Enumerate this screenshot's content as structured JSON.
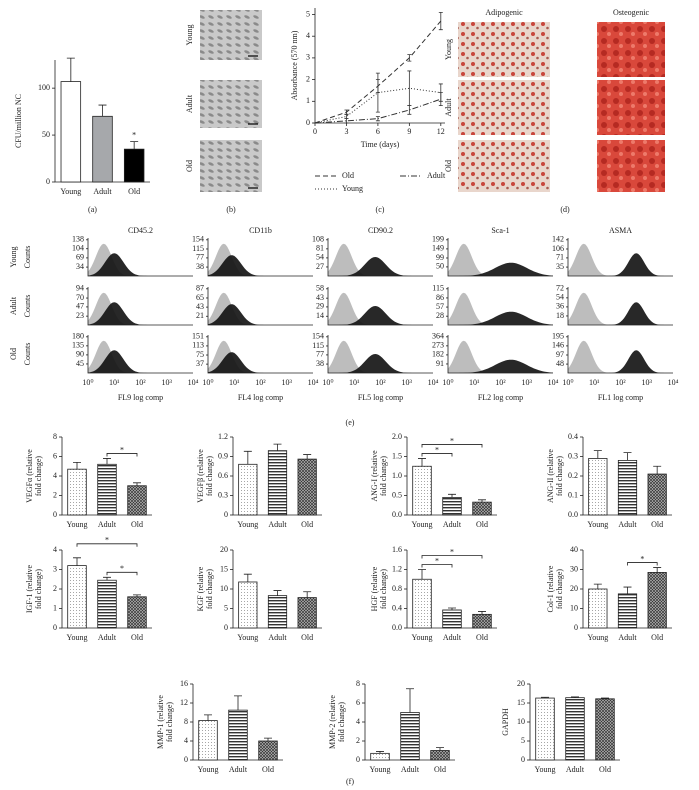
{
  "chart_data": [
    {
      "type": "bar",
      "label": "(a)",
      "ylabel": "CFU/million NC",
      "categories": [
        "Young",
        "Adult",
        "Old"
      ],
      "values": [
        107,
        70,
        35
      ],
      "errors": [
        25,
        12,
        8
      ],
      "colors": [
        "#ffffff",
        "#a6a8ab",
        "#000000"
      ],
      "ylim": [
        0,
        130
      ],
      "yticks": [
        0,
        50,
        100
      ],
      "significance": [
        {
          "over": "Old",
          "label": "*"
        }
      ]
    },
    {
      "type": "line",
      "label": "(c)",
      "ylabel": "Absorbance (570 nm)",
      "xlabel": "Time (days)",
      "x": [
        0,
        3,
        6,
        9,
        12
      ],
      "xlim": [
        0,
        12.4
      ],
      "xticks": [
        0,
        3,
        6,
        9,
        12
      ],
      "ylim": [
        0,
        5.3
      ],
      "yticks": [
        0,
        1,
        2,
        3,
        4,
        5
      ],
      "series": [
        {
          "name": "Old",
          "color": "#333333",
          "dash": "dashed",
          "values": [
            0,
            0.5,
            1.7,
            3.0,
            4.7
          ],
          "errors": [
            0,
            0.1,
            0.3,
            0.15,
            0.4
          ]
        },
        {
          "name": "Adult",
          "color": "#333333",
          "dash": "dashdot",
          "values": [
            0,
            0.1,
            0.2,
            0.6,
            1.1
          ],
          "errors": [
            0,
            0.1,
            0.1,
            0.2,
            0.3
          ]
        },
        {
          "name": "Young",
          "color": "#333333",
          "dash": "dotted",
          "values": [
            0,
            0.3,
            1.4,
            1.6,
            1.4
          ],
          "errors": [
            0,
            0.1,
            0.9,
            0.8,
            0.4
          ]
        }
      ]
    },
    {
      "type": "bar",
      "ylabel": [
        "VEGFα (relative",
        "fold change)"
      ],
      "categories": [
        "Young",
        "Adult",
        "Old"
      ],
      "values": [
        4.7,
        5.2,
        3.0
      ],
      "errors": [
        0.7,
        0.6,
        0.3
      ],
      "ylim": [
        0,
        8
      ],
      "yticks": [
        0,
        2,
        4,
        6,
        8
      ],
      "significance": [
        {
          "between": [
            "Adult",
            "Old"
          ],
          "label": "*"
        }
      ]
    },
    {
      "type": "bar",
      "ylabel": [
        "VEGFβ (relative",
        "fold change)"
      ],
      "categories": [
        "Young",
        "Adult",
        "Old"
      ],
      "values": [
        0.78,
        0.99,
        0.86
      ],
      "errors": [
        0.2,
        0.1,
        0.07
      ],
      "ylim": [
        0,
        1.2
      ],
      "yticks": [
        0,
        0.3,
        0.6,
        0.9,
        1.2
      ],
      "significance": []
    },
    {
      "type": "bar",
      "ylabel": [
        "ANG-I (relative",
        "fold change)"
      ],
      "categories": [
        "Young",
        "Adult",
        "Old"
      ],
      "values": [
        1.25,
        0.45,
        0.33
      ],
      "errors": [
        0.2,
        0.08,
        0.06
      ],
      "ylim": [
        0,
        2
      ],
      "yticks": [
        {
          "value": 0,
          "label": "0.0"
        },
        0.5,
        {
          "value": 1,
          "label": "1.0"
        },
        1.5,
        {
          "value": 2,
          "label": "2.0"
        }
      ],
      "significance": [
        {
          "between": [
            "Young",
            "Adult"
          ],
          "label": "*"
        },
        {
          "between": [
            "Young",
            "Old"
          ],
          "label": "*"
        }
      ]
    },
    {
      "type": "bar",
      "ylabel": [
        "ANG-II (relative",
        "fold change)"
      ],
      "categories": [
        "Young",
        "Adult",
        "Old"
      ],
      "values": [
        0.29,
        0.28,
        0.21
      ],
      "errors": [
        0.04,
        0.04,
        0.04
      ],
      "ylim": [
        0,
        0.4
      ],
      "yticks": [
        {
          "value": 0,
          "label": "0.0"
        },
        0.1,
        0.2,
        0.3,
        0.4
      ],
      "significance": []
    },
    {
      "type": "bar",
      "ylabel": [
        "IGF-1 (relative",
        "fold change)"
      ],
      "categories": [
        "Young",
        "Adult",
        "Old"
      ],
      "values": [
        3.2,
        2.45,
        1.6
      ],
      "errors": [
        0.4,
        0.15,
        0.1
      ],
      "ylim": [
        0,
        4
      ],
      "yticks": [
        0,
        1,
        2,
        3,
        4
      ],
      "significance": [
        {
          "between": [
            "Adult",
            "Old"
          ],
          "label": "*"
        },
        {
          "between": [
            "Young",
            "Old"
          ],
          "label": "*"
        }
      ]
    },
    {
      "type": "bar",
      "ylabel": [
        "KGF (relative",
        "fold change)"
      ],
      "categories": [
        "Young",
        "Adult",
        "Old"
      ],
      "values": [
        11.8,
        8.3,
        7.8
      ],
      "errors": [
        2,
        1.3,
        1.5
      ],
      "ylim": [
        0,
        20
      ],
      "yticks": [
        0,
        5,
        10,
        15,
        20
      ],
      "significance": []
    },
    {
      "type": "bar",
      "ylabel": [
        "HGF (relative",
        "fold change)"
      ],
      "categories": [
        "Young",
        "Adult",
        "Old"
      ],
      "values": [
        1.0,
        0.37,
        0.28
      ],
      "errors": [
        0.2,
        0.04,
        0.06
      ],
      "ylim": [
        0,
        1.6
      ],
      "yticks": [
        {
          "value": 0,
          "label": "0.0"
        },
        0.4,
        0.8,
        1.2,
        1.6
      ],
      "significance": [
        {
          "between": [
            "Young",
            "Adult"
          ],
          "label": "*"
        },
        {
          "between": [
            "Young",
            "Old"
          ],
          "label": "*"
        }
      ]
    },
    {
      "type": "bar",
      "ylabel": [
        "Col-1 (relative",
        "fold change)"
      ],
      "categories": [
        "Young",
        "Adult",
        "Old"
      ],
      "values": [
        20,
        17.5,
        28.5
      ],
      "errors": [
        2.5,
        3.5,
        2.5
      ],
      "ylim": [
        0,
        40
      ],
      "yticks": [
        0,
        10,
        20,
        30,
        40
      ],
      "significance": [
        {
          "between": [
            "Adult",
            "Old"
          ],
          "label": "*"
        }
      ]
    },
    {
      "type": "bar",
      "ylabel": [
        "MMP-1 (relative",
        "fold change)"
      ],
      "categories": [
        "Young",
        "Adult",
        "Old"
      ],
      "values": [
        8.3,
        10.5,
        4
      ],
      "errors": [
        1.2,
        3,
        0.6
      ],
      "ylim": [
        0,
        16
      ],
      "yticks": [
        0,
        4,
        8,
        12,
        16
      ],
      "significance": []
    },
    {
      "type": "bar",
      "ylabel": [
        "MMP-2 (relative",
        "fold change)"
      ],
      "categories": [
        "Young",
        "Adult",
        "Old"
      ],
      "values": [
        0.7,
        5,
        1.0
      ],
      "errors": [
        0.2,
        2.5,
        0.3
      ],
      "ylim": [
        0,
        8
      ],
      "yticks": [
        0,
        2,
        4,
        6,
        8
      ],
      "significance": []
    },
    {
      "type": "bar",
      "ylabel": "GAPDH",
      "categories": [
        "Young",
        "Adult",
        "Old"
      ],
      "values": [
        16.3,
        16.4,
        16.1
      ],
      "errors": [
        0.2,
        0.2,
        0.2
      ],
      "ylim": [
        0,
        20
      ],
      "yticks": [
        0,
        5,
        10,
        15,
        20
      ],
      "significance": []
    }
  ],
  "gene_expression_label": "(f)",
  "cell_images": {
    "label": "(b)",
    "rows": [
      "Young",
      "Adult",
      "Old"
    ]
  },
  "differentiation_images": {
    "label": "(d)",
    "columns": [
      "Adipogenic",
      "Osteogenic"
    ],
    "rows": [
      "Young",
      "Adult",
      "Old"
    ]
  },
  "flow_cytometry": {
    "label": "(e)",
    "ylabel": "Counts",
    "rows": [
      "Young",
      "Adult",
      "Old"
    ],
    "xticks": [
      "10⁰",
      "10¹",
      "10²",
      "10³",
      "10⁴"
    ],
    "columns": [
      {
        "title": "CD45.2",
        "xlabel": "FL9 log comp",
        "yticks": [
          [
            138,
            104,
            69,
            34
          ],
          [
            94,
            70,
            47,
            23
          ],
          [
            180,
            135,
            90,
            45
          ]
        ]
      },
      {
        "title": "CD11b",
        "xlabel": "FL4 log comp",
        "yticks": [
          [
            154,
            115,
            77,
            38
          ],
          [
            87,
            65,
            43,
            21
          ],
          [
            151,
            113,
            75,
            37
          ]
        ]
      },
      {
        "title": "CD90.2",
        "xlabel": "FL5 log comp",
        "yticks": [
          [
            108,
            81,
            54,
            27
          ],
          [
            58,
            43,
            29,
            14
          ],
          [
            154,
            115,
            77,
            38
          ]
        ]
      },
      {
        "title": "Sca-1",
        "xlabel": "FL2 log comp",
        "yticks": [
          [
            199,
            149,
            99,
            50
          ],
          [
            115,
            86,
            57,
            28
          ],
          [
            364,
            273,
            182,
            91
          ]
        ]
      },
      {
        "title": "ASMA",
        "xlabel": "FL1 log comp",
        "yticks": [
          [
            142,
            106,
            71,
            35
          ],
          [
            72,
            54,
            36,
            18
          ],
          [
            195,
            146,
            97,
            48
          ]
        ]
      }
    ]
  }
}
